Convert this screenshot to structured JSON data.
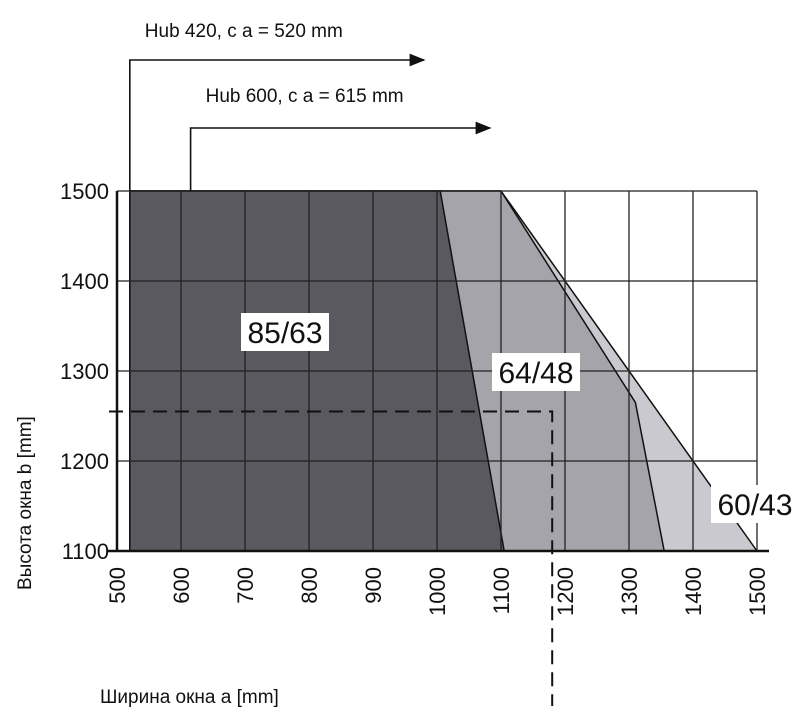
{
  "chart_data": {
    "type": "area",
    "xlabel": "Ширина окна  a  [mm]",
    "ylabel": "Высота окна  b  [mm]",
    "xlim": [
      500,
      1500
    ],
    "ylim": [
      1100,
      1500
    ],
    "x_ticks": [
      500,
      600,
      700,
      800,
      900,
      1000,
      1100,
      1200,
      1300,
      1400,
      1500
    ],
    "y_ticks": [
      1100,
      1200,
      1300,
      1400,
      1500
    ],
    "grid": true,
    "regions": [
      {
        "name": "60/43",
        "color": "#c9c9cf",
        "polygon": [
          [
            520,
            1100
          ],
          [
            520,
            1500
          ],
          [
            1100,
            1500
          ],
          [
            1500,
            1100
          ]
        ]
      },
      {
        "name": "64/48",
        "color": "#a4a4aa",
        "polygon": [
          [
            520,
            1100
          ],
          [
            520,
            1500
          ],
          [
            1100,
            1500
          ],
          [
            1310,
            1265
          ],
          [
            1355,
            1100
          ]
        ]
      },
      {
        "name": "85/63",
        "color": "#59595f",
        "polygon": [
          [
            520,
            1100
          ],
          [
            520,
            1500
          ],
          [
            1005,
            1500
          ],
          [
            1105,
            1100
          ]
        ]
      }
    ],
    "hub_markers": [
      {
        "label": "Hub 420,  c    a = 520 mm",
        "x": 520
      },
      {
        "label": "Hub 600,  c    a = 615 mm",
        "x": 615
      }
    ],
    "example_point": {
      "x": 1180,
      "y": 1255
    }
  }
}
